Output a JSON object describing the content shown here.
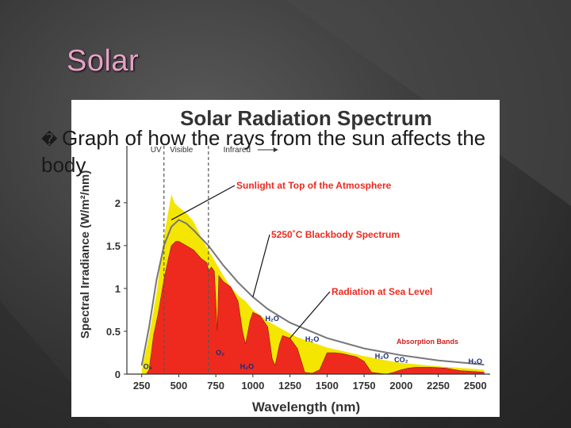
{
  "slide": {
    "title": "Solar",
    "bullet_marker": "�",
    "bullet_text": "Graph of how the rays from the sun affects the body"
  },
  "chart_data": {
    "type": "area",
    "title": "Solar Radiation Spectrum",
    "xlabel": "Wavelength (nm)",
    "ylabel": "Spectral Irradiance (W/m²/nm)",
    "xlim": [
      150,
      2600
    ],
    "ylim": [
      0,
      2.35
    ],
    "xticks": [
      250,
      500,
      750,
      1000,
      1250,
      1500,
      1750,
      2000,
      2250,
      2500
    ],
    "ytick_labels": [
      "0",
      "0.5",
      "1",
      "1.5",
      "2"
    ],
    "yticks": [
      0,
      0.5,
      1,
      1.5,
      2
    ],
    "regions": [
      {
        "label": "UV",
        "range": [
          250,
          400
        ]
      },
      {
        "label": "Visible",
        "range": [
          400,
          700
        ]
      },
      {
        "label": "Infrared",
        "range": [
          700,
          2600
        ]
      }
    ],
    "series": [
      {
        "name": "Sunlight at Top of the Atmosphere",
        "color": "#f4e600",
        "points": [
          [
            250,
            0.05
          ],
          [
            300,
            0.45
          ],
          [
            350,
            0.95
          ],
          [
            400,
            1.6
          ],
          [
            430,
            1.9
          ],
          [
            450,
            2.1
          ],
          [
            470,
            2.0
          ],
          [
            500,
            1.95
          ],
          [
            550,
            1.88
          ],
          [
            600,
            1.78
          ],
          [
            650,
            1.6
          ],
          [
            700,
            1.45
          ],
          [
            750,
            1.3
          ],
          [
            800,
            1.15
          ],
          [
            850,
            1.02
          ],
          [
            900,
            0.92
          ],
          [
            950,
            0.85
          ],
          [
            1000,
            0.75
          ],
          [
            1100,
            0.62
          ],
          [
            1200,
            0.52
          ],
          [
            1300,
            0.43
          ],
          [
            1400,
            0.37
          ],
          [
            1500,
            0.31
          ],
          [
            1600,
            0.27
          ],
          [
            1750,
            0.21
          ],
          [
            1900,
            0.16
          ],
          [
            2000,
            0.13
          ],
          [
            2250,
            0.09
          ],
          [
            2500,
            0.06
          ],
          [
            2560,
            0.05
          ]
        ]
      },
      {
        "name": "5250°C Blackbody Spectrum",
        "color": "#777777",
        "points": [
          [
            250,
            0.1
          ],
          [
            300,
            0.55
          ],
          [
            350,
            1.1
          ],
          [
            400,
            1.5
          ],
          [
            450,
            1.72
          ],
          [
            500,
            1.8
          ],
          [
            550,
            1.76
          ],
          [
            600,
            1.68
          ],
          [
            700,
            1.5
          ],
          [
            800,
            1.27
          ],
          [
            900,
            1.07
          ],
          [
            1000,
            0.9
          ],
          [
            1100,
            0.76
          ],
          [
            1250,
            0.6
          ],
          [
            1500,
            0.42
          ],
          [
            1750,
            0.3
          ],
          [
            2000,
            0.22
          ],
          [
            2250,
            0.16
          ],
          [
            2500,
            0.12
          ],
          [
            2560,
            0.11
          ]
        ]
      },
      {
        "name": "Radiation at Sea Level",
        "color": "#ee2a1f",
        "points": [
          [
            280,
            0
          ],
          [
            300,
            0.05
          ],
          [
            330,
            0.45
          ],
          [
            360,
            0.7
          ],
          [
            400,
            1.1
          ],
          [
            430,
            1.35
          ],
          [
            450,
            1.5
          ],
          [
            480,
            1.55
          ],
          [
            500,
            1.55
          ],
          [
            550,
            1.5
          ],
          [
            600,
            1.45
          ],
          [
            650,
            1.35
          ],
          [
            690,
            1.3
          ],
          [
            700,
            1.2
          ],
          [
            720,
            1.25
          ],
          [
            740,
            1.2
          ],
          [
            760,
            0.5
          ],
          [
            770,
            1.15
          ],
          [
            800,
            1.08
          ],
          [
            850,
            1.02
          ],
          [
            900,
            0.85
          ],
          [
            930,
            0.5
          ],
          [
            950,
            0.35
          ],
          [
            980,
            0.62
          ],
          [
            1000,
            0.72
          ],
          [
            1050,
            0.68
          ],
          [
            1100,
            0.55
          ],
          [
            1130,
            0.18
          ],
          [
            1150,
            0.1
          ],
          [
            1180,
            0.35
          ],
          [
            1200,
            0.45
          ],
          [
            1250,
            0.42
          ],
          [
            1300,
            0.3
          ],
          [
            1350,
            0.02
          ],
          [
            1400,
            0.01
          ],
          [
            1450,
            0.05
          ],
          [
            1500,
            0.25
          ],
          [
            1550,
            0.25
          ],
          [
            1600,
            0.24
          ],
          [
            1650,
            0.22
          ],
          [
            1700,
            0.2
          ],
          [
            1750,
            0.15
          ],
          [
            1800,
            0.02
          ],
          [
            1900,
            0.0
          ],
          [
            1950,
            0.02
          ],
          [
            2000,
            0.05
          ],
          [
            2050,
            0.07
          ],
          [
            2100,
            0.08
          ],
          [
            2200,
            0.08
          ],
          [
            2300,
            0.07
          ],
          [
            2400,
            0.04
          ],
          [
            2500,
            0.03
          ],
          [
            2560,
            0.02
          ]
        ]
      }
    ],
    "annotations": [
      {
        "text": "Sunlight at Top of the Atmosphere",
        "color": "#ee2a1f",
        "target": [
          450,
          1.8
        ]
      },
      {
        "text": "5250˚C Blackbody Spectrum",
        "color": "#ee2a1f",
        "target": [
          1000,
          0.9
        ]
      },
      {
        "text": "Radiation at Sea Level",
        "color": "#ee2a1f",
        "target": [
          1250,
          0.42
        ]
      },
      {
        "text": "Absorption Bands",
        "color": "#cc1f1f"
      }
    ],
    "absorption_labels": [
      {
        "text": "O₃",
        "x": 290,
        "y": 0.06
      },
      {
        "text": "O₂",
        "x": 780,
        "y": 0.22
      },
      {
        "text": "H₂O",
        "x": 960,
        "y": 0.06
      },
      {
        "text": "H₂O",
        "x": 1130,
        "y": 0.62
      },
      {
        "text": "H₂O",
        "x": 1400,
        "y": 0.38
      },
      {
        "text": "H₂O",
        "x": 1870,
        "y": 0.18
      },
      {
        "text": "CO₂",
        "x": 2000,
        "y": 0.14
      },
      {
        "text": "H₂O",
        "x": 2500,
        "y": 0.12
      }
    ]
  }
}
